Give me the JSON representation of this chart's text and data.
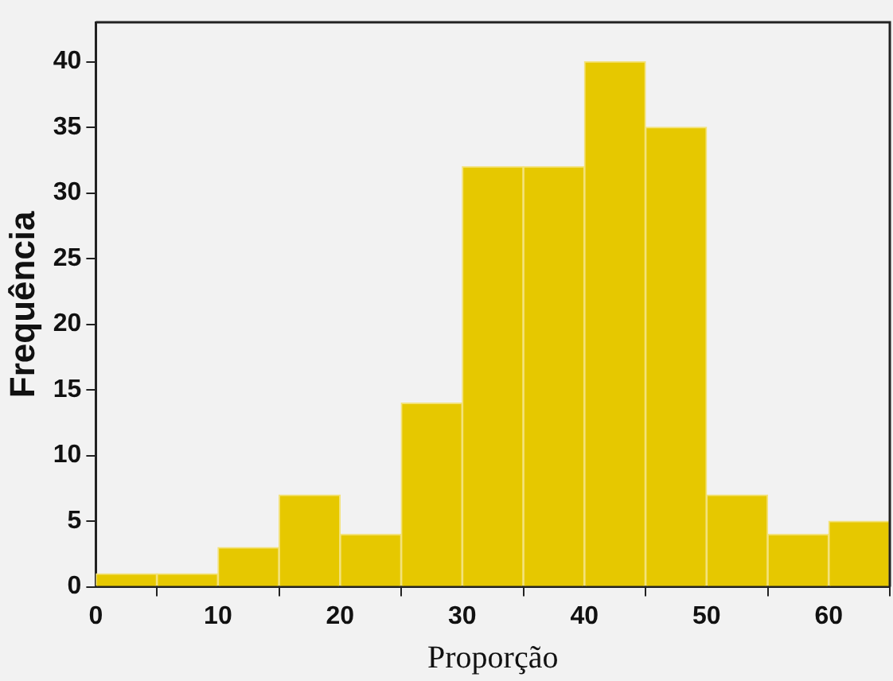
{
  "chart_data": {
    "type": "histogram",
    "xlabel": "Proporção",
    "ylabel": "Frequência",
    "bins": [
      0,
      5,
      10,
      15,
      20,
      25,
      30,
      35,
      40,
      45,
      50,
      55,
      60,
      65
    ],
    "values": [
      1,
      1,
      3,
      7,
      4,
      14,
      32,
      32,
      40,
      35,
      7,
      4,
      5
    ],
    "color": "#e6c800",
    "xlim": [
      0,
      65
    ],
    "xticks": [
      0,
      10,
      20,
      30,
      40,
      50,
      60
    ],
    "ylim": [
      0,
      43
    ],
    "yticks": [
      0,
      5,
      10,
      15,
      20,
      25,
      30,
      35,
      40
    ],
    "grid": false
  }
}
